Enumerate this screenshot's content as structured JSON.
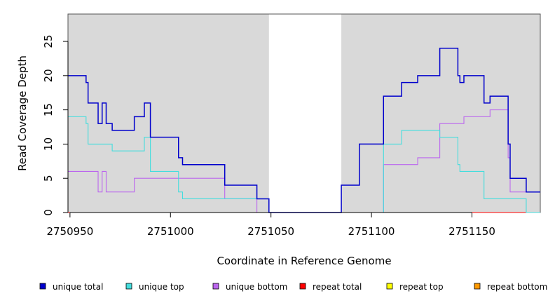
{
  "chart_data": {
    "type": "line",
    "step": true,
    "title": "",
    "xlabel": "Coordinate in Reference Genome",
    "ylabel": "Read Coverage Depth",
    "xlim": [
      2750949,
      2751184
    ],
    "ylim": [
      0,
      29
    ],
    "x_ticks": [
      2750950,
      2751000,
      2751050,
      2751100,
      2751150
    ],
    "y_ticks": [
      0,
      5,
      10,
      15,
      20,
      25
    ],
    "shaded_regions": [
      {
        "from": 2750949,
        "to": 2751049
      },
      {
        "from": 2751085,
        "to": 2751184
      }
    ],
    "shade_color": "#d9d9d9",
    "grid": false,
    "legend_position": "bottom",
    "series": [
      {
        "name": "unique total",
        "color": "#0000cc",
        "points": [
          [
            2750949,
            20
          ],
          [
            2750958,
            19
          ],
          [
            2750959,
            16
          ],
          [
            2750964,
            13
          ],
          [
            2750966,
            16
          ],
          [
            2750968,
            13
          ],
          [
            2750971,
            12
          ],
          [
            2750982,
            14
          ],
          [
            2750987,
            16
          ],
          [
            2750990,
            11
          ],
          [
            2751004,
            8
          ],
          [
            2751006,
            7
          ],
          [
            2751027,
            4
          ],
          [
            2751043,
            2
          ],
          [
            2751049,
            0
          ],
          [
            2751085,
            4
          ],
          [
            2751094,
            10
          ],
          [
            2751106,
            17
          ],
          [
            2751115,
            19
          ],
          [
            2751123,
            20
          ],
          [
            2751134,
            24
          ],
          [
            2751143,
            20
          ],
          [
            2751144,
            19
          ],
          [
            2751146,
            20
          ],
          [
            2751156,
            16
          ],
          [
            2751159,
            17
          ],
          [
            2751168,
            10
          ],
          [
            2751169,
            5
          ],
          [
            2751177,
            3
          ],
          [
            2751184,
            3
          ]
        ]
      },
      {
        "name": "unique top",
        "color": "#44dddd",
        "points": [
          [
            2750949,
            14
          ],
          [
            2750958,
            13
          ],
          [
            2750959,
            10
          ],
          [
            2750971,
            9
          ],
          [
            2750987,
            11
          ],
          [
            2750990,
            6
          ],
          [
            2751004,
            3
          ],
          [
            2751006,
            2
          ],
          [
            2751027,
            2
          ],
          [
            2751043,
            2
          ],
          [
            2751049,
            0
          ],
          [
            2751085,
            0
          ],
          [
            2751106,
            10
          ],
          [
            2751115,
            12
          ],
          [
            2751134,
            11
          ],
          [
            2751143,
            7
          ],
          [
            2751144,
            6
          ],
          [
            2751156,
            2
          ],
          [
            2751177,
            0
          ],
          [
            2751184,
            0
          ]
        ]
      },
      {
        "name": "unique bottom",
        "color": "#bb66ee",
        "points": [
          [
            2750949,
            6
          ],
          [
            2750964,
            3
          ],
          [
            2750966,
            6
          ],
          [
            2750968,
            3
          ],
          [
            2750982,
            5
          ],
          [
            2751027,
            2
          ],
          [
            2751043,
            0
          ],
          [
            2751085,
            0
          ],
          [
            2751106,
            7
          ],
          [
            2751123,
            8
          ],
          [
            2751134,
            13
          ],
          [
            2751146,
            14
          ],
          [
            2751159,
            15
          ],
          [
            2751168,
            8
          ],
          [
            2751169,
            3
          ],
          [
            2751184,
            3
          ]
        ]
      },
      {
        "name": "repeat total",
        "color": "#ff0000",
        "points": [
          [
            2750949,
            0
          ],
          [
            2751184,
            0
          ]
        ]
      },
      {
        "name": "repeat top",
        "color": "#ffff00",
        "points": [
          [
            2750949,
            0
          ],
          [
            2751184,
            0
          ]
        ]
      },
      {
        "name": "repeat bottom",
        "color": "#ff9900",
        "points": [
          [
            2750949,
            0
          ],
          [
            2751184,
            0
          ]
        ]
      }
    ]
  }
}
